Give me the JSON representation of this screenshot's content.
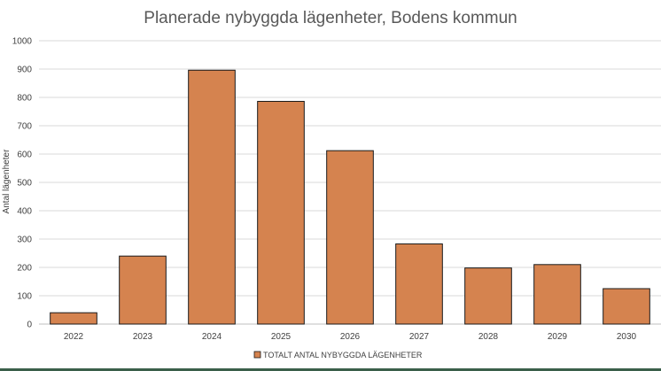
{
  "chart_data": {
    "type": "bar",
    "title": "Planerade nybyggda lägenheter, Bodens kommun",
    "xlabel": "",
    "ylabel": "Antal lägenheter",
    "categories": [
      "2022",
      "2023",
      "2024",
      "2025",
      "2026",
      "2027",
      "2028",
      "2029",
      "2030"
    ],
    "series": [
      {
        "name": "TOTALT ANTAL NYBYGGDA LÄGENHETER",
        "values": [
          40,
          240,
          896,
          786,
          612,
          283,
          198,
          210,
          125
        ]
      }
    ],
    "ylim": [
      0,
      1000
    ],
    "yticks": [
      0,
      100,
      200,
      300,
      400,
      500,
      600,
      700,
      800,
      900,
      1000
    ],
    "grid": true,
    "legend_position": "bottom",
    "colors": {
      "bar_fill": "#d5834f",
      "bar_stroke": "#1a1a1a",
      "grid": "#d9d9d9"
    }
  }
}
